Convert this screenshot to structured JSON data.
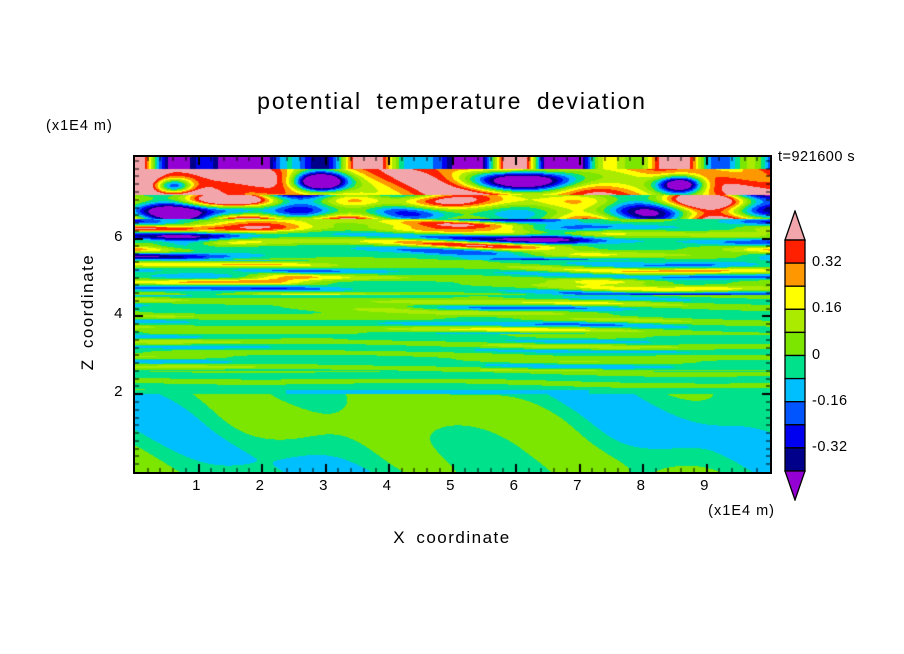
{
  "chart_data": {
    "type": "heatmap",
    "title": "potential temperature deviation",
    "timestamp": "t=921600 s",
    "x_axis": {
      "label": "X coordinate",
      "unit_label": "(x1E4 m)",
      "range": [
        0,
        10
      ],
      "ticks": [
        1,
        2,
        3,
        4,
        5,
        6,
        7,
        8,
        9
      ],
      "minor_tick_step": 0.2
    },
    "z_axis": {
      "label": "Z coordinate",
      "unit_label": "(x1E4 m)",
      "range": [
        0,
        8.1
      ],
      "ticks": [
        2,
        4,
        6
      ],
      "minor_tick_step": 0.2
    },
    "layout": {
      "frame_color": "#000000",
      "text_color": "#000000",
      "background": "#ffffff",
      "grid": false,
      "legend_position": "right-colorbar"
    },
    "colorscale": {
      "levels": [
        -0.4,
        -0.32,
        -0.24,
        -0.16,
        -0.08,
        0,
        0.08,
        0.16,
        0.24,
        0.32,
        0.4
      ],
      "below_color": "#9400D3",
      "bin_colors": [
        "#00008B",
        "#0000F0",
        "#0055FF",
        "#00BFFF",
        "#00E18C",
        "#7CE600",
        "#AAEB00",
        "#FFFF00",
        "#FF9800",
        "#FF2000"
      ],
      "above_color": "#F2A6AC",
      "tick_labels": [
        {
          "value": 0.32,
          "label": "0.32"
        },
        {
          "value": 0.16,
          "label": "0.16"
        },
        {
          "value": 0,
          "label": "0"
        },
        {
          "value": -0.16,
          "label": "-0.16"
        },
        {
          "value": -0.32,
          "label": "-0.32"
        }
      ]
    },
    "field_model": {
      "description": "Procedural approximation of the plotted potential-temperature-deviation field: strong breaking gravity-wave layer with pink/purple bands near the top (z>6.5), thin undulating positive/negative wave striations of decreasing amplitude through 2<z<6.5, a sharp cyan interface at z=2, and a smooth near-zero green region below z=2.",
      "bands": [
        {
          "z_lo": 7.78,
          "z_hi": 8.25,
          "base": -0.12,
          "m0": 1,
          "waves": [
            {
              "a": 0.5,
              "kx": 2.3,
              "kz": 0,
              "p": 0.4,
              "wav": 1.5,
              "wavk": 0.9,
              "wp": 1.1
            },
            {
              "a": 0.3,
              "kx": 5.1,
              "kz": 0,
              "p": 2.0
            }
          ]
        },
        {
          "z_lo": 7.12,
          "z_hi": 7.78,
          "base": 0.4,
          "m0": 1,
          "waves": [
            {
              "a": 0.15,
              "kx": 1.2,
              "kz": 0,
              "p": 0.8
            },
            {
              "a": 0.12,
              "kx": 2.8,
              "kz": 5.0,
              "p": 1.9
            }
          ],
          "pockets": [
            {
              "xc": 2.9,
              "zc": 7.45,
              "wx": 0.4,
              "wz": 0.25,
              "amp": -1.1
            },
            {
              "xc": 6.2,
              "zc": 7.5,
              "wx": 0.9,
              "wz": 0.3,
              "amp": -1.2
            },
            {
              "xc": 8.6,
              "zc": 7.4,
              "wx": 0.35,
              "wz": 0.22,
              "amp": -0.9
            },
            {
              "xc": 0.6,
              "zc": 7.35,
              "wx": 0.3,
              "wz": 0.2,
              "amp": -0.8
            }
          ]
        },
        {
          "z_lo": 6.5,
          "z_hi": 7.12,
          "base": 0.05,
          "m0": 0.8,
          "m1": 0.35,
          "mkx": 0.7,
          "mp": 0.3,
          "waves": [
            {
              "a": 0.3,
              "kx": 1.7,
              "kz": 3.2,
              "p": 1.0,
              "wav": 1.2,
              "wavk": 0.8,
              "wp": 0.2
            },
            {
              "a": 0.26,
              "kx": 3.4,
              "kz": 0,
              "p": 2.4
            },
            {
              "a": 0.2,
              "kx": 0,
              "kz": 10,
              "p": 0.7
            }
          ],
          "pockets": [
            {
              "xc": 4.6,
              "zc": 6.9,
              "wx": 0.7,
              "wz": 0.25,
              "amp": 0.5
            },
            {
              "xc": 1.6,
              "zc": 6.75,
              "wx": 0.5,
              "wz": 0.2,
              "amp": -0.6
            }
          ]
        },
        {
          "z_lo": 5.45,
          "z_hi": 6.5,
          "base": 0,
          "m0": 0.7,
          "m1": 0.4,
          "mkx": 1.1,
          "mp": 1.6,
          "waves": [
            {
              "a": 0.26,
              "kx": 0.25,
              "kz": 13,
              "p": 0.5,
              "wav": 1.4,
              "wavk": 0.75,
              "wp": 2.0
            },
            {
              "a": 0.13,
              "kx": 0.5,
              "kz": 22,
              "p": 1.8,
              "wav": 0.8,
              "wavk": 1.3,
              "wp": 0.4
            }
          ],
          "pockets": [
            {
              "xc": 2.0,
              "zc": 6.3,
              "wx": 0.8,
              "wz": 0.18,
              "amp": 0.35
            },
            {
              "xc": 4.8,
              "zc": 6.25,
              "wx": 0.9,
              "wz": 0.16,
              "amp": 0.3
            },
            {
              "xc": 6.6,
              "zc": 6.1,
              "wx": 0.6,
              "wz": 0.15,
              "amp": -0.35
            },
            {
              "xc": 0.8,
              "zc": 5.9,
              "wx": 0.5,
              "wz": 0.15,
              "amp": -0.3
            }
          ]
        },
        {
          "z_lo": 4.55,
          "z_hi": 5.45,
          "base": 0,
          "m0": 0.65,
          "m1": 0.4,
          "mkx": 0.9,
          "mp": 0.2,
          "waves": [
            {
              "a": 0.17,
              "kx": 0.3,
              "kz": 15,
              "p": 2.2,
              "wav": 1.2,
              "wavk": 0.85,
              "wp": 1.0
            },
            {
              "a": 0.09,
              "kx": 0.6,
              "kz": 26,
              "p": 0.3,
              "wav": 0.7,
              "wavk": 1.5,
              "wp": 2.5
            }
          ],
          "pockets": [
            {
              "xc": 2.3,
              "zc": 5.0,
              "wx": 0.7,
              "wz": 0.12,
              "amp": 0.22
            },
            {
              "xc": 7.4,
              "zc": 4.9,
              "wx": 0.8,
              "wz": 0.12,
              "amp": 0.2
            }
          ]
        },
        {
          "z_lo": 3.55,
          "z_hi": 4.55,
          "base": 0,
          "m0": 0.6,
          "m1": 0.45,
          "mkx": 0.8,
          "mp": 2.8,
          "waves": [
            {
              "a": 0.13,
              "kx": 0.35,
              "kz": 17,
              "p": 1.1,
              "wav": 1.1,
              "wavk": 0.7,
              "wp": 0.6
            },
            {
              "a": 0.07,
              "kx": 0.5,
              "kz": 28,
              "p": 2.6,
              "wav": 0.6,
              "wavk": 1.2,
              "wp": 1.8
            }
          ],
          "pockets": [
            {
              "xc": 4.0,
              "zc": 4.2,
              "wx": 0.9,
              "wz": 0.1,
              "amp": 0.15
            }
          ]
        },
        {
          "z_lo": 2.6,
          "z_hi": 3.55,
          "base": -0.005,
          "m0": 0.6,
          "m1": 0.45,
          "mkx": 0.95,
          "mp": 1.2,
          "waves": [
            {
              "a": 0.09,
              "kx": 0.3,
              "kz": 19,
              "p": 0.2,
              "wav": 1.0,
              "wavk": 0.8,
              "wp": 2.2
            },
            {
              "a": 0.05,
              "kx": 0.55,
              "kz": 30,
              "p": 1.5
            }
          ]
        },
        {
          "z_lo": 2.1,
          "z_hi": 2.6,
          "base": -0.01,
          "m0": 0.7,
          "m1": 0.3,
          "mkx": 1.0,
          "mp": 0.5,
          "waves": [
            {
              "a": 0.06,
              "kx": 0.3,
              "kz": 21,
              "p": 2.0,
              "wav": 0.8,
              "wavk": 0.9,
              "wp": 0.3
            }
          ]
        },
        {
          "z_lo": 2.0,
          "z_hi": 2.1,
          "base": -0.1,
          "m0": 1,
          "waves": [
            {
              "a": 0.06,
              "kx": 0.8,
              "kz": 0,
              "p": 0.9
            }
          ]
        },
        {
          "z_lo": -0.2,
          "z_hi": 2.0,
          "base": -0.032,
          "m0": 1,
          "waves": [
            {
              "a": 0.05,
              "kx": 0.8,
              "kz": 1.5,
              "p": 2.3
            },
            {
              "a": 0.04,
              "kx": 1.6,
              "kz": 2.7,
              "p": 0.7
            },
            {
              "a": 0.035,
              "kx": 2.7,
              "kz": 1.0,
              "p": 1.9
            }
          ],
          "pockets": [
            {
              "xc": 2.2,
              "zc": 1.2,
              "wx": 1.2,
              "wz": 0.6,
              "amp": 0.06
            },
            {
              "xc": 5.0,
              "zc": 1.5,
              "wx": 1.4,
              "wz": 0.5,
              "amp": 0.05
            },
            {
              "xc": 8.0,
              "zc": 0.9,
              "wx": 1.0,
              "wz": 0.5,
              "amp": -0.04
            }
          ]
        }
      ]
    }
  }
}
